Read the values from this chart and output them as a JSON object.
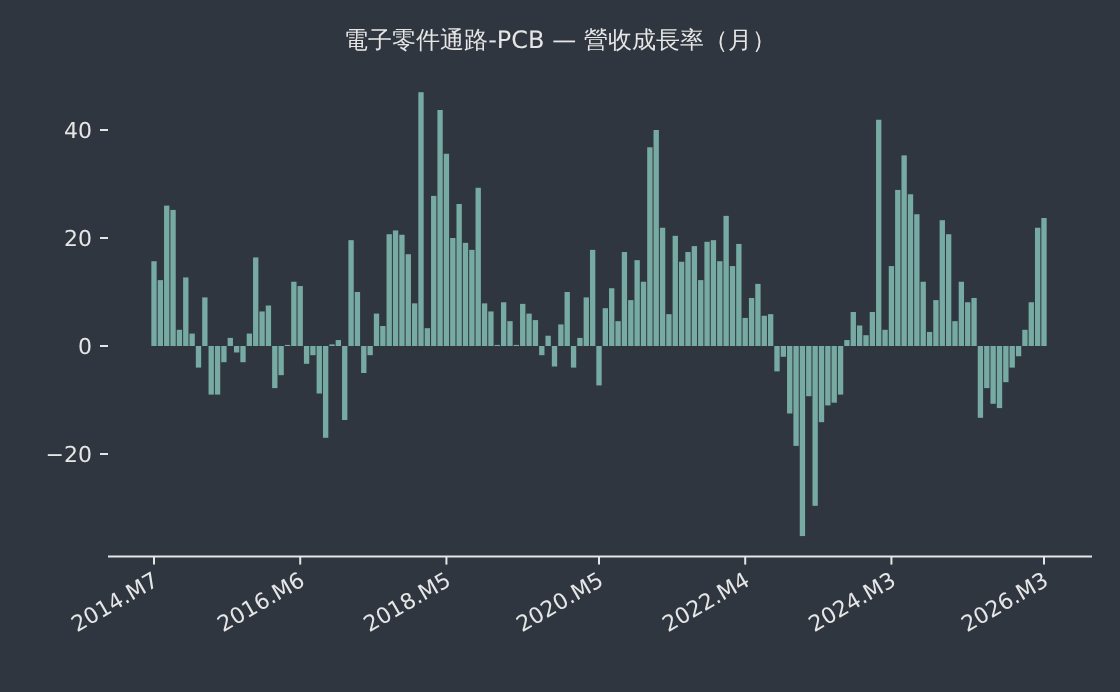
{
  "chart_data": {
    "type": "bar",
    "title": "電子零件通路-PCB — 營收成長率（月）",
    "categories": [
      "2014.M7",
      null,
      null,
      null,
      null,
      null,
      null,
      null,
      null,
      null,
      null,
      null,
      null,
      null,
      null,
      null,
      null,
      null,
      null,
      null,
      null,
      null,
      null,
      "2016.M6",
      null,
      null,
      null,
      null,
      null,
      null,
      null,
      null,
      null,
      null,
      null,
      null,
      null,
      null,
      null,
      null,
      null,
      null,
      null,
      null,
      null,
      null,
      "2018.M5",
      null,
      null,
      null,
      null,
      null,
      null,
      null,
      null,
      null,
      null,
      null,
      null,
      null,
      null,
      null,
      null,
      null,
      null,
      null,
      null,
      null,
      null,
      null,
      "2020.M5",
      null,
      null,
      null,
      null,
      null,
      null,
      null,
      null,
      null,
      null,
      null,
      null,
      null,
      null,
      null,
      null,
      null,
      null,
      null,
      null,
      null,
      null,
      "2022.M4",
      null,
      null,
      null,
      null,
      null,
      null,
      null,
      null,
      null,
      null,
      null,
      null,
      null,
      null,
      null,
      null,
      null,
      null,
      null,
      null,
      null,
      null,
      "2024.M3",
      null,
      null,
      null,
      null,
      null,
      null,
      null,
      null,
      null,
      null,
      null,
      null,
      null,
      null,
      null,
      null,
      null,
      null,
      null,
      null,
      null,
      null,
      null,
      "2026.M3"
    ],
    "values": [
      15.7,
      12.2,
      26,
      25.2,
      3,
      12.7,
      2.3,
      -4,
      9,
      -9,
      -9,
      -3,
      1.5,
      -1.2,
      -3,
      2.3,
      16.4,
      6.4,
      7.5,
      -7.8,
      -5.4,
      0.2,
      11.9,
      11.1,
      -3.3,
      -1.7,
      -8.8,
      -17,
      0.3,
      1.1,
      -13.7,
      19.6,
      10,
      -5,
      -1.7,
      6,
      3.7,
      20.7,
      21.4,
      20.6,
      17,
      7.9,
      47,
      3.3,
      27.8,
      43.7,
      35.6,
      20,
      26.3,
      19.1,
      17.8,
      29.3,
      7.9,
      6.4,
      0.2,
      8.1,
      4.6,
      0.2,
      7.8,
      6,
      4.8,
      -1.7,
      1.9,
      -3.8,
      4,
      10,
      -4,
      1.5,
      9,
      17.8,
      -7.3,
      7,
      10.7,
      4.6,
      17.4,
      8.5,
      15.9,
      11.9,
      36.8,
      40,
      21.9,
      5.9,
      20.4,
      15.6,
      17.4,
      18.5,
      12.2,
      19.3,
      19.6,
      15.7,
      24.1,
      14.8,
      18.9,
      5.2,
      8.9,
      11.5,
      5.6,
      5.9,
      -4.7,
      -2,
      -12.5,
      -18.5,
      -35.2,
      -9.3,
      -29.6,
      -14.1,
      -11,
      -10.5,
      -9,
      1.1,
      6.3,
      3.8,
      2,
      6.3,
      41.9,
      3,
      14.8,
      28.9,
      35.3,
      28.1,
      24.4,
      11.9,
      2.6,
      8.5,
      23.3,
      20.7,
      4.6,
      11.9,
      8.1,
      8.9,
      -13.3,
      -7.8,
      -10.7,
      -11.5,
      -6.7,
      -4,
      -1.9,
      3,
      8.1,
      21.9,
      23.7
    ],
    "color": "#76aaa2",
    "ylim": [
      -39,
      47
    ],
    "yticks": [
      {
        "value": -20,
        "label": "−20"
      },
      0,
      20,
      40
    ],
    "grid": false
  }
}
